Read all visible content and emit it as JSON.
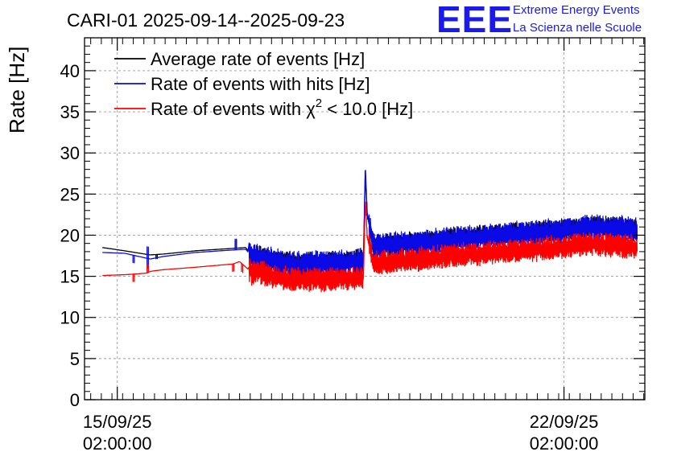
{
  "logo": {
    "mark": "EEE",
    "line1": "Extreme Energy Events",
    "line2": "La Scienza nelle Scuole",
    "color": "#1a1aee"
  },
  "chart_data": {
    "type": "line",
    "title": "CARI-01 2025-09-14--2025-09-23",
    "ylabel": "Rate [Hz]",
    "xlabel": "",
    "ylim": [
      0,
      44
    ],
    "yticks": [
      0,
      5,
      10,
      15,
      20,
      25,
      30,
      35,
      40
    ],
    "grid": true,
    "legend_position": "top-left",
    "x_unit": "days since 2025-09-14 00:00",
    "xlim": [
      0.57,
      9.35
    ],
    "xticks": [
      {
        "value": 1.0833,
        "date": "15/09/25",
        "time": "02:00:00"
      },
      {
        "value": 8.0833,
        "date": "22/09/25",
        "time": "02:00:00"
      }
    ],
    "series": [
      {
        "name": "Average rate of events [Hz]",
        "label_parts": {
          "text": "Average rate of events [Hz]"
        },
        "color": "#000000",
        "anchors": [
          [
            0.85,
            18.5
          ],
          [
            1.2,
            18.1
          ],
          [
            1.6,
            17.6
          ],
          [
            1.8,
            17.7
          ],
          [
            2.3,
            18.1
          ],
          [
            2.9,
            18.4
          ],
          [
            3.1,
            18.5
          ],
          [
            3.2,
            17.2
          ],
          [
            3.3,
            17.5
          ],
          [
            3.6,
            16.8
          ],
          [
            3.9,
            16.5
          ],
          [
            4.2,
            16.6
          ],
          [
            4.6,
            16.7
          ],
          [
            4.9,
            17.0
          ],
          [
            4.94,
            17.0
          ],
          [
            4.97,
            27.5
          ],
          [
            5.0,
            22.5
          ],
          [
            5.1,
            18.7
          ],
          [
            5.5,
            19.0
          ],
          [
            6.0,
            19.2
          ],
          [
            6.5,
            19.7
          ],
          [
            7.0,
            20.0
          ],
          [
            7.5,
            20.3
          ],
          [
            8.0,
            20.6
          ],
          [
            8.5,
            21.1
          ],
          [
            9.0,
            20.9
          ],
          [
            9.2,
            20.6
          ],
          [
            9.23,
            20.6
          ]
        ],
        "noise_start": 3.15,
        "noise_amp": 1.3,
        "spikes": [
          [
            1.7,
            -0.5
          ],
          [
            2.3,
            0.0
          ],
          [
            2.95,
            1.0
          ]
        ]
      },
      {
        "name": "Rate of events with hits [Hz]",
        "label_parts": {
          "text": "Rate of events with hits [Hz]"
        },
        "color": "#0a0ae6",
        "anchors": [
          [
            0.85,
            17.9
          ],
          [
            1.2,
            17.8
          ],
          [
            1.6,
            17.1
          ],
          [
            1.8,
            17.4
          ],
          [
            2.3,
            17.9
          ],
          [
            2.9,
            18.2
          ],
          [
            3.1,
            18.3
          ],
          [
            3.2,
            17.2
          ],
          [
            3.3,
            17.4
          ],
          [
            3.6,
            16.7
          ],
          [
            3.9,
            16.4
          ],
          [
            4.2,
            16.5
          ],
          [
            4.6,
            16.6
          ],
          [
            4.9,
            16.9
          ],
          [
            4.94,
            16.9
          ],
          [
            4.97,
            28.5
          ],
          [
            5.0,
            22.6
          ],
          [
            5.1,
            18.6
          ],
          [
            5.5,
            18.9
          ],
          [
            6.0,
            19.1
          ],
          [
            6.5,
            19.6
          ],
          [
            7.0,
            19.9
          ],
          [
            7.5,
            20.2
          ],
          [
            8.0,
            20.5
          ],
          [
            8.5,
            21.0
          ],
          [
            9.0,
            20.8
          ],
          [
            9.2,
            20.5
          ],
          [
            9.23,
            20.6
          ]
        ],
        "noise_start": 3.15,
        "noise_amp": 1.5,
        "spikes": [
          [
            1.35,
            -0.9
          ],
          [
            1.57,
            1.4
          ],
          [
            1.57,
            -1.2
          ],
          [
            2.95,
            1.3
          ]
        ]
      },
      {
        "name": "Rate of events with χ² < 10.0 [Hz]",
        "label_parts": {
          "pre": "Rate of events with ",
          "chi": "χ",
          "sup": "2",
          "post": " < 10.0 [Hz]"
        },
        "color": "#ff0000",
        "anchors": [
          [
            0.85,
            15.1
          ],
          [
            1.2,
            15.2
          ],
          [
            1.4,
            15.3
          ],
          [
            1.55,
            15.4
          ],
          [
            1.6,
            15.6
          ],
          [
            1.8,
            15.8
          ],
          [
            2.3,
            16.1
          ],
          [
            2.9,
            16.5
          ],
          [
            3.0,
            16.8
          ],
          [
            3.2,
            15.4
          ],
          [
            3.3,
            15.6
          ],
          [
            3.6,
            14.9
          ],
          [
            3.9,
            14.6
          ],
          [
            4.2,
            14.6
          ],
          [
            4.6,
            14.7
          ],
          [
            4.9,
            14.8
          ],
          [
            4.94,
            14.8
          ],
          [
            4.97,
            24.5
          ],
          [
            5.0,
            19.8
          ],
          [
            5.1,
            16.6
          ],
          [
            5.5,
            16.9
          ],
          [
            6.0,
            17.2
          ],
          [
            6.5,
            17.6
          ],
          [
            7.0,
            17.9
          ],
          [
            7.5,
            18.2
          ],
          [
            8.0,
            18.5
          ],
          [
            8.5,
            18.9
          ],
          [
            9.0,
            18.7
          ],
          [
            9.2,
            18.5
          ],
          [
            9.23,
            18.4
          ]
        ],
        "noise_start": 3.15,
        "noise_amp": 1.4,
        "spikes": [
          [
            1.35,
            -0.9
          ],
          [
            1.57,
            0.9
          ],
          [
            2.9,
            -0.9
          ],
          [
            3.05,
            -1.0
          ]
        ]
      }
    ]
  }
}
